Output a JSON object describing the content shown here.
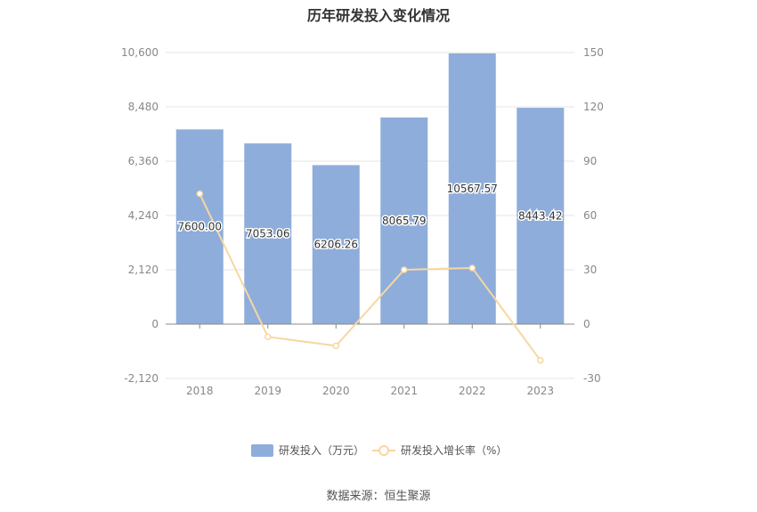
{
  "title": "历年研发投入变化情况",
  "source": "数据来源：恒生聚源",
  "colors": {
    "bar": "#8eadda",
    "line": "#f7d7a0",
    "grid": "#e6e6e6",
    "axis": "#888888"
  },
  "chart_data": {
    "type": "bar",
    "title": "历年研发投入变化情况",
    "categories": [
      "2018",
      "2019",
      "2020",
      "2021",
      "2022",
      "2023"
    ],
    "series": [
      {
        "name": "研发投入（万元）",
        "type": "bar",
        "axis": "left",
        "values": [
          7600.0,
          7053.06,
          6206.26,
          8065.79,
          10567.57,
          8443.42
        ],
        "labels": [
          "7600.00",
          "7053.06",
          "6206.26",
          "8065.79",
          "10567.57",
          "8443.42"
        ]
      },
      {
        "name": "研发投入增长率（%）",
        "type": "line",
        "axis": "right",
        "values": [
          72,
          -7,
          -12,
          30,
          31,
          -20
        ]
      }
    ],
    "left_axis": {
      "min": -2120,
      "max": 10600,
      "ticks": [
        -2120,
        0,
        2120,
        4240,
        6360,
        8480,
        10600
      ],
      "tick_labels": [
        "-2,120",
        "0",
        "2,120",
        "4,240",
        "6,360",
        "8,480",
        "10,600"
      ]
    },
    "right_axis": {
      "min": -30,
      "max": 150,
      "ticks": [
        -30,
        0,
        30,
        60,
        90,
        120,
        150
      ],
      "tick_labels": [
        "-30",
        "0",
        "30",
        "60",
        "90",
        "120",
        "150"
      ]
    },
    "grid": true,
    "legend_position": "bottom"
  }
}
